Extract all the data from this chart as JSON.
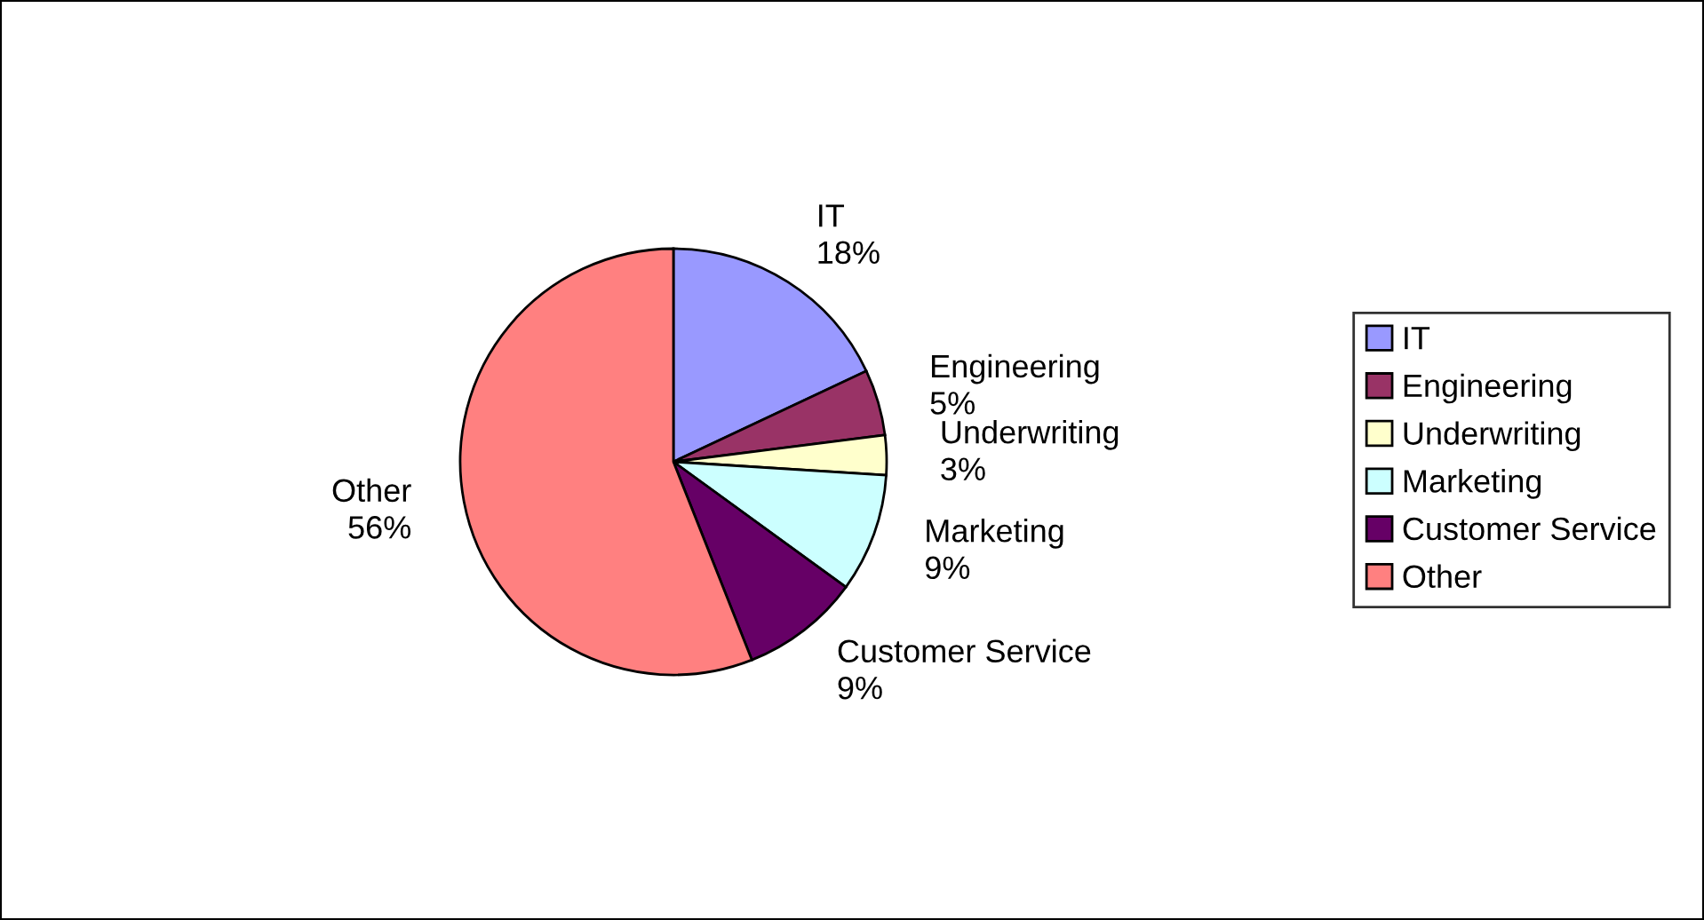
{
  "chart_data": {
    "type": "pie",
    "categories": [
      "IT",
      "Engineering",
      "Underwriting",
      "Marketing",
      "Customer Service",
      "Other"
    ],
    "values": [
      18,
      5,
      3,
      9,
      9,
      56
    ],
    "colors": [
      "#9999ff",
      "#993366",
      "#ffffcc",
      "#ccffff",
      "#660066",
      "#ff8080"
    ],
    "value_labels": [
      "18%",
      "5%",
      "3%",
      "9%",
      "9%",
      "56%"
    ],
    "legend": "right"
  }
}
